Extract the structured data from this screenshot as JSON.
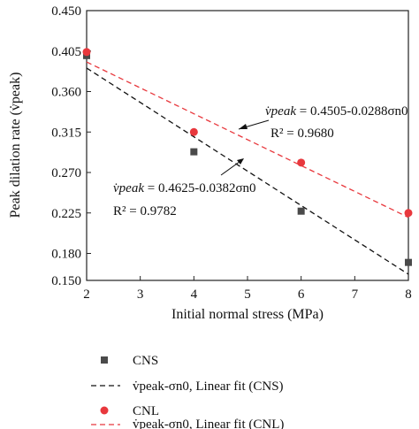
{
  "chart_data": {
    "type": "scatter",
    "xlabel": "Initial normal stress (MPa)",
    "ylabel": "Peak dilation rate (v̇peak)",
    "xlim": [
      2,
      8
    ],
    "ylim": [
      0.15,
      0.45
    ],
    "x_ticks": [
      "2",
      "3",
      "4",
      "5",
      "6",
      "7",
      "8"
    ],
    "y_ticks": [
      "0.150",
      "0.180",
      "0.225",
      "0.270",
      "0.315",
      "0.360",
      "0.405",
      "0.450"
    ],
    "grid": false,
    "legend_position": "below",
    "series": [
      {
        "name": "CNS",
        "kind": "points",
        "marker": "square",
        "color": "#4a4a4a",
        "x": [
          2,
          4,
          6,
          8
        ],
        "y": [
          0.4,
          0.293,
          0.227,
          0.17
        ]
      },
      {
        "name": "Linear fit (CNS)",
        "kind": "fit",
        "color": "#111111",
        "intercept": 0.4625,
        "slope": -0.0382,
        "x": [
          2,
          8
        ]
      },
      {
        "name": "CNL",
        "kind": "points",
        "marker": "circle",
        "color": "#e8383d",
        "x": [
          2,
          4,
          6,
          8
        ],
        "y": [
          0.404,
          0.315,
          0.281,
          0.225
        ]
      },
      {
        "name": "Linear fit (CNL)",
        "kind": "fit",
        "color": "#e8383d",
        "intercept": 0.4505,
        "slope": -0.0288,
        "x": [
          2,
          8
        ]
      }
    ],
    "annotations": {
      "cnl_equation": {
        "lhs": "v̇peak",
        "rhs": " = 0.4505-0.0288σn0",
        "r2": "R² = 0.9680"
      },
      "cns_equation": {
        "lhs": "v̇peak",
        "rhs": " = 0.4625-0.0382σn0",
        "r2": "R² = 0.9782"
      }
    },
    "legend": [
      {
        "label": "CNS",
        "marker": "square"
      },
      {
        "label": "v̇peak-σn0, Linear fit (CNS)",
        "marker": "dashed-black"
      },
      {
        "label": "CNL",
        "marker": "circle"
      },
      {
        "label": "v̇peak-σn0, Linear fit (CNL)",
        "marker": "dashed-red"
      }
    ]
  }
}
